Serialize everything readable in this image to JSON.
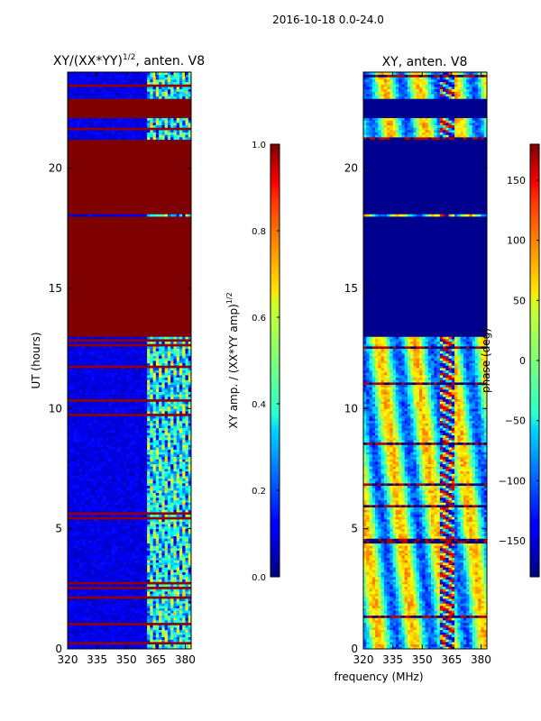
{
  "page": {
    "suptitle": "2016-10-18 0.0-24.0",
    "shared_xlabel": "frequency (MHz)"
  },
  "chart_data": [
    {
      "type": "heatmap",
      "title": "XY/(XX*YY)",
      "title_sup": "1/2",
      "title_tail": ", anten. V8",
      "xlabel": "",
      "ylabel": "UT (hours)",
      "xlim": [
        320,
        383
      ],
      "ylim": [
        0,
        24
      ],
      "xticks": [
        320,
        335,
        350,
        365,
        380
      ],
      "xtick_labels": [
        "320",
        "335",
        "350",
        "365",
        "380"
      ],
      "yticks": [
        0,
        5,
        10,
        15,
        20
      ],
      "ytick_labels": [
        "0",
        "5",
        "10",
        "15",
        "20"
      ],
      "colorbar": {
        "label": "XY amp. / (XX*YY amp)",
        "label_sup": "1/2",
        "range": [
          0.0,
          1.0
        ],
        "ticks": [
          0.0,
          0.2,
          0.4,
          0.6,
          0.8,
          1.0
        ],
        "tick_labels": [
          "0.0",
          "0.2",
          "0.4",
          "0.6",
          "0.8",
          "1.0"
        ]
      },
      "saturated_ut_bands": [
        [
          13.0,
          18.0
        ],
        [
          18.1,
          21.2
        ],
        [
          22.1,
          22.9
        ]
      ],
      "active_frequency_range_mhz": [
        360,
        383
      ]
    },
    {
      "type": "heatmap",
      "title": "XY, anten. V8",
      "xlabel": "frequency (MHz)",
      "ylabel": "",
      "xlim": [
        320,
        383
      ],
      "ylim": [
        0,
        24
      ],
      "xticks": [
        320,
        335,
        350,
        365,
        380
      ],
      "xtick_labels": [
        "320",
        "335",
        "350",
        "365",
        "380"
      ],
      "yticks": [
        0,
        5,
        10,
        15,
        20
      ],
      "ytick_labels": [
        "0",
        "5",
        "10",
        "15",
        "20"
      ],
      "colorbar": {
        "label": "phase (deg)",
        "range": [
          -180,
          180
        ],
        "ticks": [
          -150,
          -100,
          -50,
          0,
          50,
          100,
          150
        ],
        "tick_labels": [
          "−150",
          "−100",
          "−50",
          "0",
          "50",
          "100",
          "150"
        ]
      },
      "constant_ut_bands": [
        [
          13.0,
          18.0
        ],
        [
          18.1,
          21.2
        ],
        [
          22.1,
          22.9
        ]
      ]
    }
  ]
}
